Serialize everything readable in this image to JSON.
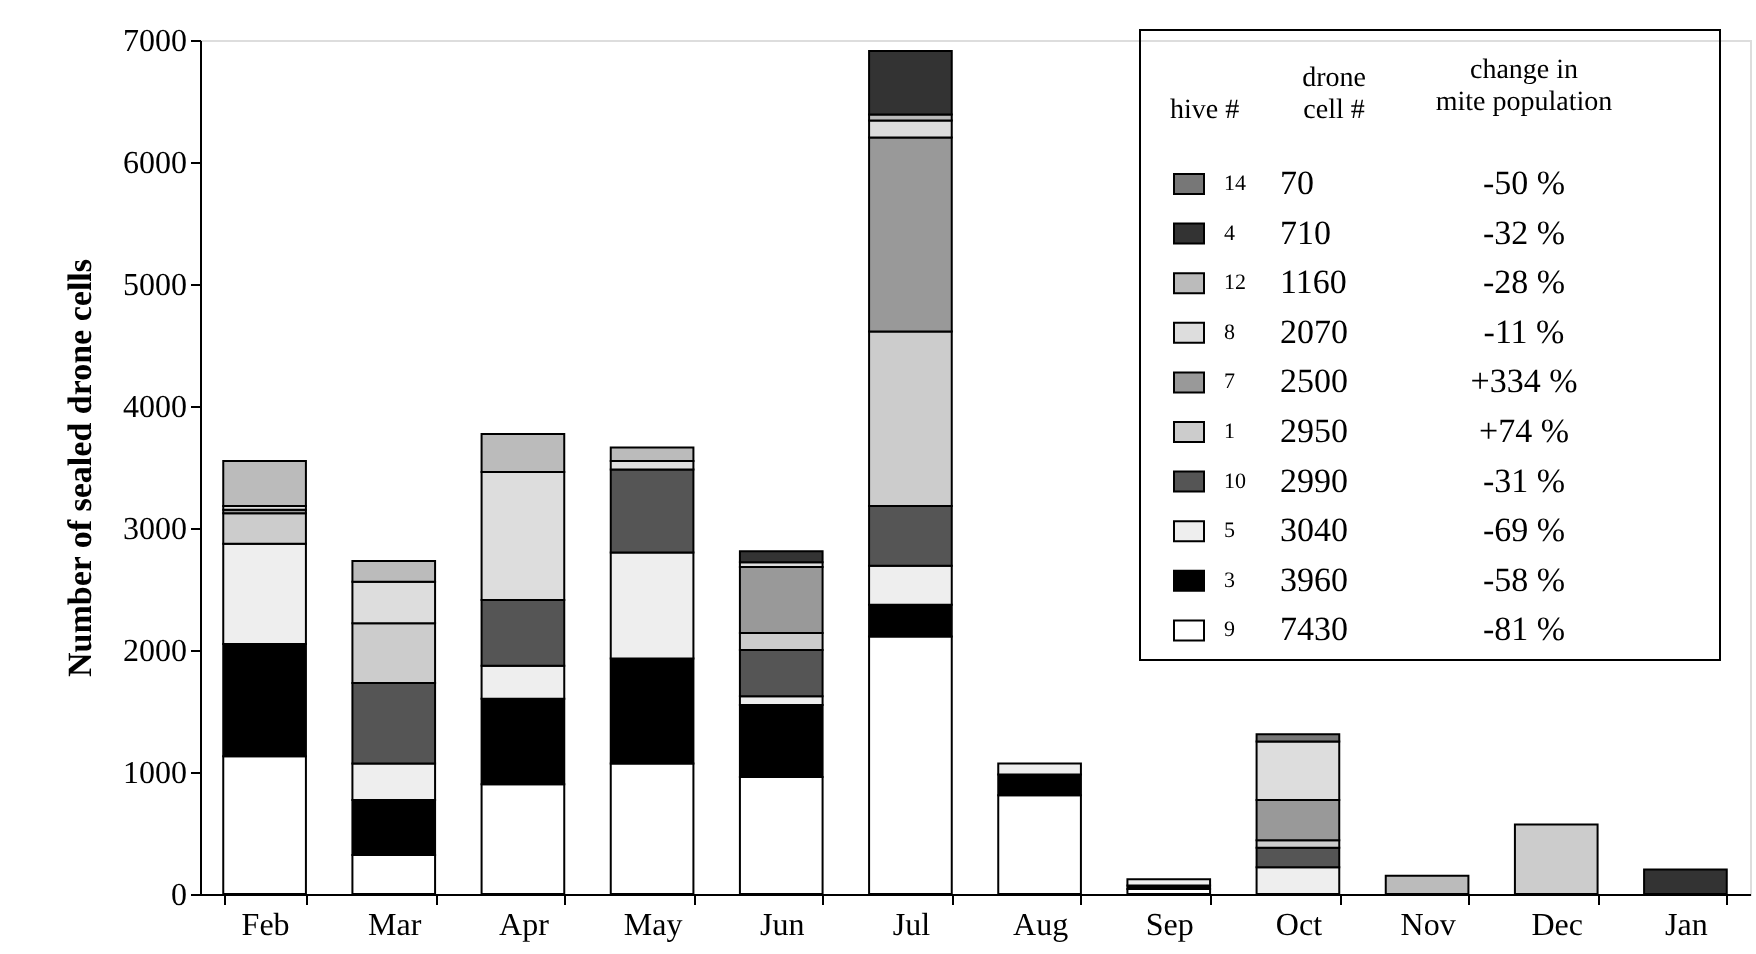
{
  "chart_data": {
    "type": "bar",
    "stacked": true,
    "ylabel": "Number of sealed drone cells",
    "categories": [
      "Feb",
      "Mar",
      "Apr",
      "May",
      "Jun",
      "Jul",
      "Aug",
      "Sep",
      "Oct",
      "Nov",
      "Dec",
      "Jan"
    ],
    "ylim": [
      0,
      7000
    ],
    "yticks": [
      0,
      1000,
      2000,
      3000,
      4000,
      5000,
      6000,
      7000
    ],
    "grid": false,
    "legend": "top right",
    "legend_title": "hive #",
    "series": [
      {
        "name": "9",
        "color": "#ffffff",
        "values": [
          1130,
          320,
          900,
          1070,
          960,
          2110,
          810,
          40,
          null,
          null,
          null,
          null
        ]
      },
      {
        "name": "3",
        "color": "#000000",
        "values": [
          920,
          450,
          700,
          860,
          590,
          260,
          170,
          30,
          null,
          null,
          null,
          null
        ]
      },
      {
        "name": "5",
        "color": "#eeeeee",
        "values": [
          820,
          300,
          270,
          870,
          70,
          320,
          90,
          50,
          220,
          null,
          null,
          null
        ]
      },
      {
        "name": "10",
        "color": "#555555",
        "values": [
          null,
          660,
          540,
          680,
          380,
          490,
          null,
          null,
          160,
          null,
          null,
          null
        ]
      },
      {
        "name": "1",
        "color": "#cccccc",
        "values": [
          250,
          490,
          null,
          null,
          140,
          1430,
          null,
          null,
          60,
          null,
          570,
          null
        ]
      },
      {
        "name": "7",
        "color": "#999999",
        "values": [
          30,
          null,
          null,
          null,
          540,
          1590,
          null,
          null,
          330,
          null,
          null,
          null
        ]
      },
      {
        "name": "8",
        "color": "#dddddd",
        "values": [
          30,
          340,
          1050,
          70,
          40,
          140,
          null,
          null,
          480,
          null,
          null,
          null
        ]
      },
      {
        "name": "12",
        "color": "#bbbbbb",
        "values": [
          370,
          170,
          310,
          110,
          null,
          50,
          null,
          null,
          null,
          150,
          null,
          null
        ]
      },
      {
        "name": "4",
        "color": "#333333",
        "values": [
          null,
          null,
          null,
          null,
          90,
          520,
          null,
          null,
          null,
          null,
          null,
          200
        ]
      },
      {
        "name": "14",
        "color": "#777777",
        "values": [
          null,
          null,
          null,
          null,
          null,
          null,
          null,
          null,
          60,
          null,
          null,
          null
        ]
      }
    ],
    "annotations": [
      "drone\ncell #",
      "change in\nmite population",
      "70",
      "-50 %",
      "710",
      "-32 %",
      "1160",
      "-28 %",
      "2070",
      "-11 %",
      "2500",
      "+334 %",
      "2950",
      "+74 %",
      "2990",
      "-31 %",
      "3040",
      "-69 %",
      "3960",
      "-58 %",
      "7430",
      "-81 %"
    ]
  }
}
